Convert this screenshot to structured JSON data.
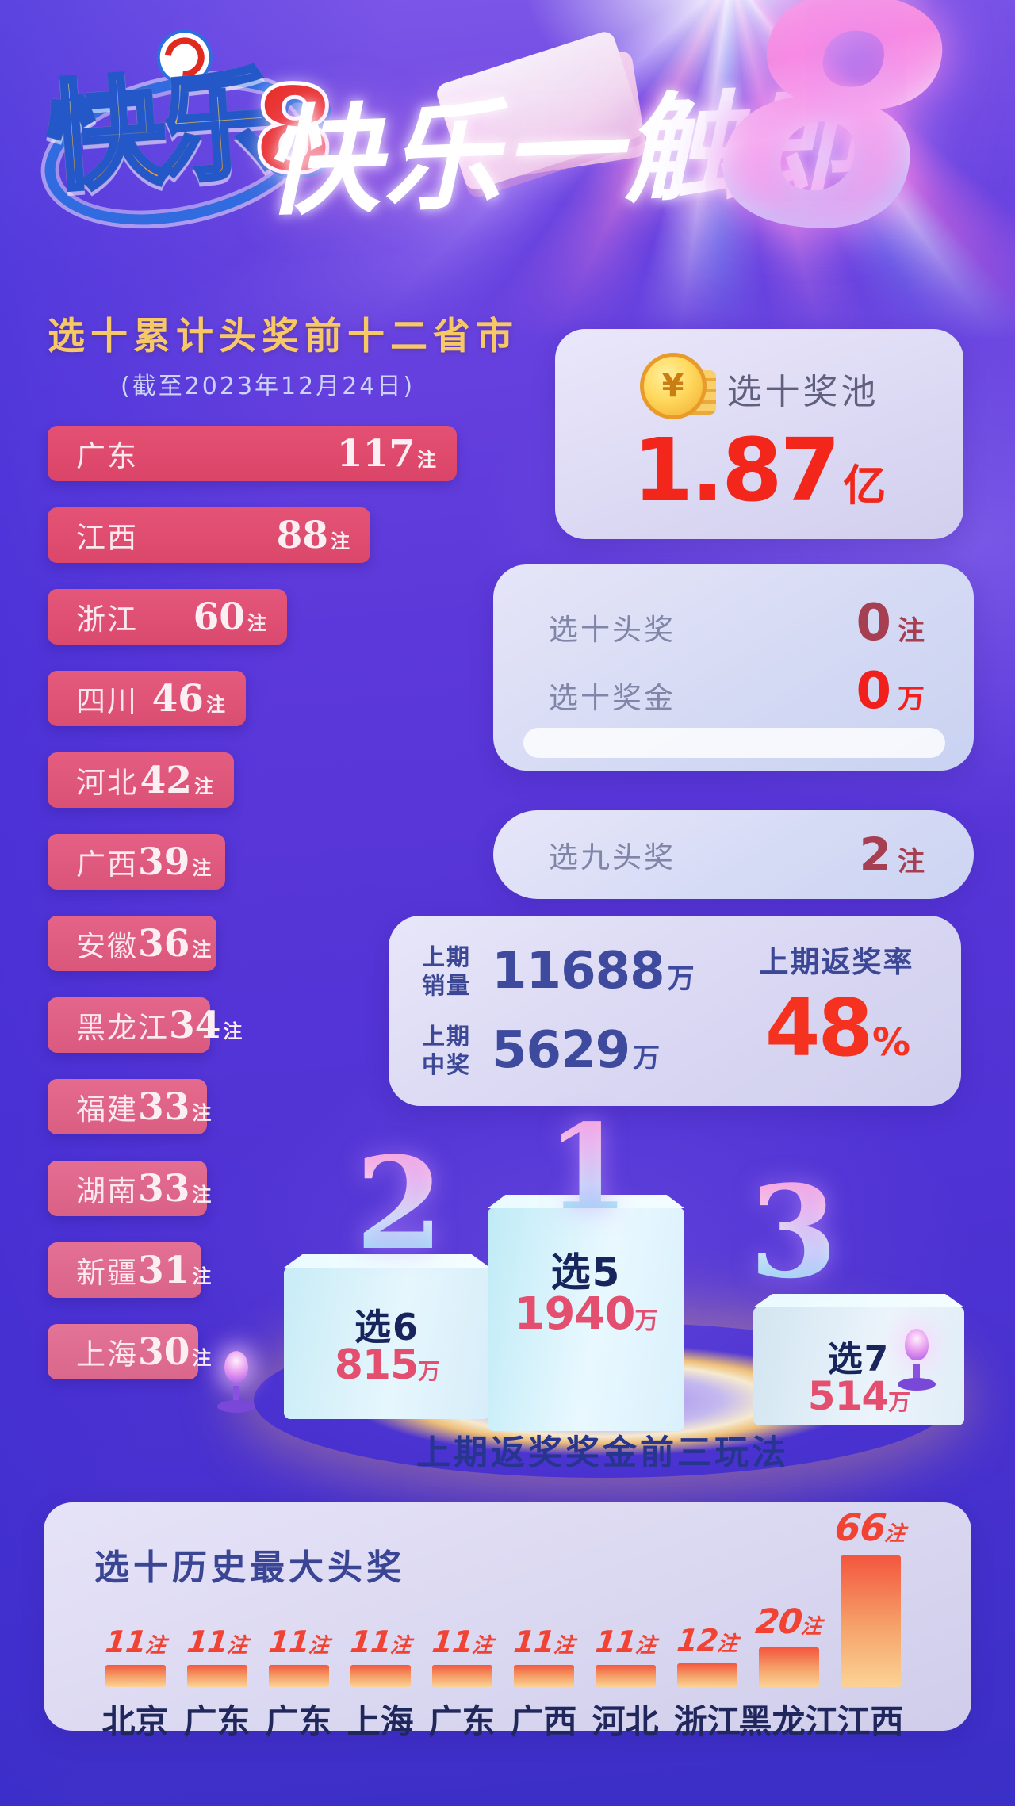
{
  "header": {
    "logo_text": "快乐",
    "logo_number": "8",
    "slogan": "快乐一触即",
    "big_number": "8"
  },
  "jackpot": {
    "label": "选十奖池",
    "value": "1.87",
    "unit": "亿"
  },
  "pick10": {
    "row1_label": "选十头奖",
    "row1_value": "0",
    "row1_unit": "注",
    "row2_label": "选十奖金",
    "row2_value": "0",
    "row2_unit": "万"
  },
  "pick9": {
    "label": "选九头奖",
    "value": "2",
    "unit": "注"
  },
  "last_draw": {
    "sales_label": "上期\n销量",
    "sales_value": "11688",
    "sales_unit": "万",
    "win_label": "上期\n中奖",
    "win_value": "5629",
    "win_unit": "万",
    "rate_label": "上期返奖率",
    "rate_value": "48",
    "rate_unit": "%"
  },
  "podium": {
    "caption": "上期返奖奖金前三玩法",
    "first": {
      "rank": "1",
      "game": "选5",
      "amount": "1940",
      "unit": "万"
    },
    "second": {
      "rank": "2",
      "game": "选6",
      "amount": "815",
      "unit": "万"
    },
    "third": {
      "rank": "3",
      "game": "选7",
      "amount": "514",
      "unit": "万"
    }
  },
  "chart_data": [
    {
      "type": "bar",
      "orientation": "horizontal",
      "title": "选十累计头奖前十二省市",
      "subtitle": "(截至2023年12月24日)",
      "unit": "注",
      "categories": [
        "广东",
        "江西",
        "浙江",
        "四川",
        "河北",
        "广西",
        "安徽",
        "黑龙江",
        "福建",
        "湖南",
        "新疆",
        "上海"
      ],
      "values": [
        117,
        88,
        60,
        46,
        42,
        39,
        36,
        34,
        33,
        33,
        31,
        30
      ],
      "bar_color_start": "#e0486d",
      "bar_color_end": "#e57a9e"
    },
    {
      "type": "bar",
      "orientation": "vertical",
      "title": "选十历史最大头奖",
      "unit": "注",
      "categories": [
        "北京",
        "广东",
        "广东",
        "上海",
        "广东",
        "广西",
        "河北",
        "浙江",
        "黑龙江",
        "江西"
      ],
      "values": [
        11,
        11,
        11,
        11,
        11,
        11,
        11,
        12,
        20,
        66
      ],
      "bar_color_top": "#f3563e",
      "bar_color_bottom": "#fbd395"
    }
  ],
  "colors": {
    "accent_red": "#f2261a",
    "dark_red": "#a63f52",
    "navy": "#3e4a9e",
    "gold_title": "#f7c966",
    "caption_navy": "#27358e"
  }
}
